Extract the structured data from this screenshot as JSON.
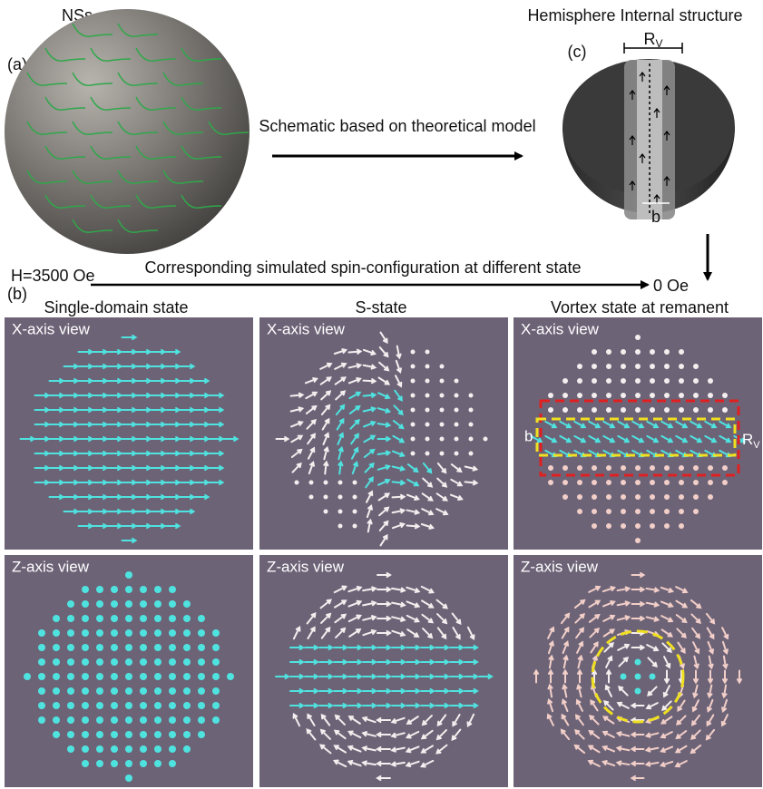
{
  "panel_a": {
    "label": "(a)",
    "title": "NSs"
  },
  "arrow_caption": "Schematic based on theoretical model",
  "panel_c": {
    "label": "(c)",
    "title": "Hemisphere Internal structure",
    "radius_label": {
      "symbol": "R",
      "subscript": "V"
    },
    "core_label": "b"
  },
  "panel_b": {
    "label": "(b)",
    "field_start": "H=3500 Oe",
    "field_caption": "Corresponding simulated spin-configuration at different state",
    "field_end": "0 Oe",
    "states": [
      "Single-domain state",
      "S-state",
      "Vortex state at remanent"
    ],
    "views": [
      [
        "X-axis view",
        "X-axis view",
        "X-axis view"
      ],
      [
        "Z-axis view",
        "Z-axis view",
        "Z-axis view"
      ]
    ],
    "core_label": "b",
    "radius_label": {
      "symbol": "R",
      "subscript": "V"
    }
  }
}
